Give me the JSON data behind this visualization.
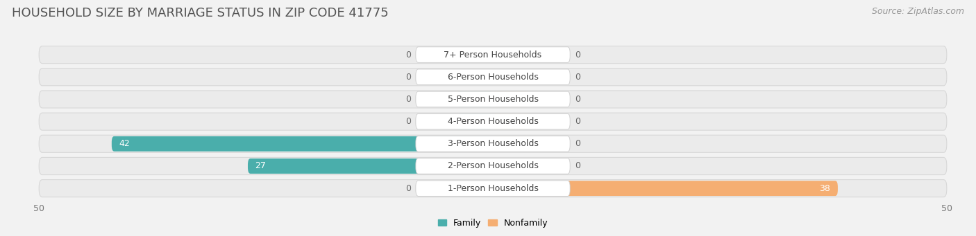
{
  "title": "HOUSEHOLD SIZE BY MARRIAGE STATUS IN ZIP CODE 41775",
  "source": "Source: ZipAtlas.com",
  "categories": [
    "7+ Person Households",
    "6-Person Households",
    "5-Person Households",
    "4-Person Households",
    "3-Person Households",
    "2-Person Households",
    "1-Person Households"
  ],
  "family_values": [
    0,
    0,
    0,
    0,
    42,
    27,
    0
  ],
  "nonfamily_values": [
    0,
    0,
    0,
    0,
    0,
    0,
    38
  ],
  "family_color": "#4AAEAB",
  "nonfamily_color": "#F5AE72",
  "xlim": [
    -50,
    50
  ],
  "background_color": "#f2f2f2",
  "row_bg_light": "#ebebeb",
  "row_bg_dark": "#e0e0e0",
  "title_fontsize": 13,
  "source_fontsize": 9,
  "bar_label_fontsize": 9,
  "category_label_fontsize": 9,
  "zero_stub": 4
}
